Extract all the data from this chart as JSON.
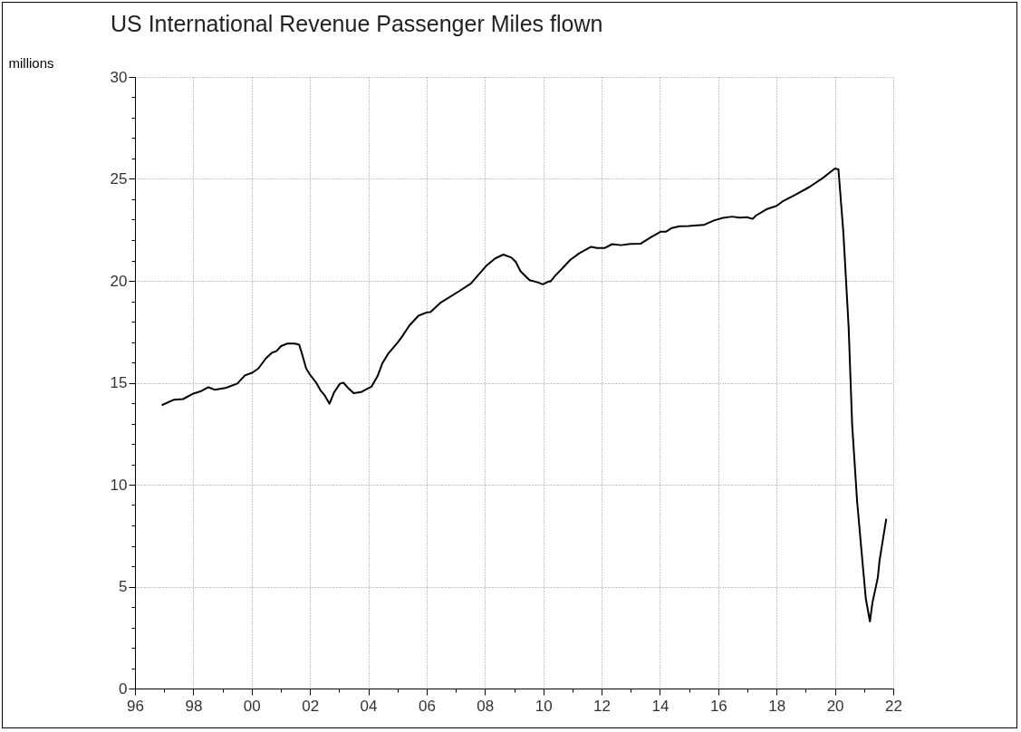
{
  "chart_data": {
    "type": "line",
    "title": "US International Revenue Passenger Miles flown",
    "ylabel": "millions",
    "grid": true,
    "xlim": [
      1996,
      2022
    ],
    "ylim": [
      0,
      30
    ],
    "xticks": [
      {
        "value": 1996,
        "label": "96"
      },
      {
        "value": 1997,
        "label": null
      },
      {
        "value": 1998,
        "label": "98"
      },
      {
        "value": 1999,
        "label": null
      },
      {
        "value": 2000,
        "label": "00"
      },
      {
        "value": 2001,
        "label": null
      },
      {
        "value": 2002,
        "label": "02"
      },
      {
        "value": 2003,
        "label": null
      },
      {
        "value": 2004,
        "label": "04"
      },
      {
        "value": 2005,
        "label": null
      },
      {
        "value": 2006,
        "label": "06"
      },
      {
        "value": 2007,
        "label": null
      },
      {
        "value": 2008,
        "label": "08"
      },
      {
        "value": 2009,
        "label": null
      },
      {
        "value": 2010,
        "label": "10"
      },
      {
        "value": 2011,
        "label": null
      },
      {
        "value": 2012,
        "label": "12"
      },
      {
        "value": 2013,
        "label": null
      },
      {
        "value": 2014,
        "label": "14"
      },
      {
        "value": 2015,
        "label": null
      },
      {
        "value": 2016,
        "label": "16"
      },
      {
        "value": 2017,
        "label": null
      },
      {
        "value": 2018,
        "label": "18"
      },
      {
        "value": 2019,
        "label": null
      },
      {
        "value": 2020,
        "label": "20"
      },
      {
        "value": 2021,
        "label": null
      },
      {
        "value": 2022,
        "label": "22"
      }
    ],
    "yticks": [
      0,
      {
        "value": 1,
        "label": null
      },
      {
        "value": 2,
        "label": null
      },
      {
        "value": 3,
        "label": null
      },
      {
        "value": 4,
        "label": null
      },
      5,
      {
        "value": 6,
        "label": null
      },
      {
        "value": 7,
        "label": null
      },
      {
        "value": 8,
        "label": null
      },
      {
        "value": 9,
        "label": null
      },
      10,
      {
        "value": 11,
        "label": null
      },
      {
        "value": 12,
        "label": null
      },
      {
        "value": 13,
        "label": null
      },
      {
        "value": 14,
        "label": null
      },
      15,
      {
        "value": 16,
        "label": null
      },
      {
        "value": 17,
        "label": null
      },
      {
        "value": 18,
        "label": null
      },
      {
        "value": 19,
        "label": null
      },
      20,
      {
        "value": 21,
        "label": null
      },
      {
        "value": 22,
        "label": null
      },
      {
        "value": 23,
        "label": null
      },
      {
        "value": 24,
        "label": null
      },
      25,
      {
        "value": 26,
        "label": null
      },
      {
        "value": 27,
        "label": null
      },
      {
        "value": 28,
        "label": null
      },
      {
        "value": 29,
        "label": null
      },
      30
    ],
    "series": [
      {
        "color": "#000000",
        "x": [
          1996.92,
          1997.34,
          1997.65,
          1998.0,
          1998.27,
          1998.52,
          1998.73,
          1999.1,
          1999.51,
          1999.77,
          2000.03,
          2000.23,
          2000.49,
          2000.7,
          2000.85,
          2001.01,
          2001.22,
          2001.48,
          2001.63,
          2001.74,
          2001.87,
          2002.0,
          2002.2,
          2002.36,
          2002.51,
          2002.67,
          2002.82,
          2003.03,
          2003.15,
          2003.29,
          2003.5,
          2003.75,
          2004.01,
          2004.11,
          2004.32,
          2004.48,
          2004.69,
          2005.0,
          2005.15,
          2005.41,
          2005.72,
          2006.0,
          2006.13,
          2006.49,
          2007.11,
          2007.52,
          2008.04,
          2008.35,
          2008.63,
          2008.91,
          2009.06,
          2009.22,
          2009.53,
          2009.78,
          2009.99,
          2010.2,
          2010.25,
          2010.4,
          2010.66,
          2010.92,
          2011.23,
          2011.64,
          2011.84,
          2012.1,
          2012.36,
          2012.67,
          2012.98,
          2013.33,
          2013.69,
          2014.02,
          2014.2,
          2014.41,
          2014.67,
          2014.98,
          2015.5,
          2015.85,
          2016.16,
          2016.47,
          2016.73,
          2016.98,
          2017.18,
          2017.29,
          2017.65,
          2018.0,
          2018.23,
          2018.65,
          2019.12,
          2019.59,
          2019.8,
          2020.0,
          2020.12,
          2020.29,
          2020.47,
          2020.59,
          2020.76,
          2020.94,
          2021.06,
          2021.2,
          2021.29,
          2021.47,
          2021.53,
          2021.76
        ],
        "values": [
          13.9,
          14.17,
          14.2,
          14.47,
          14.59,
          14.78,
          14.66,
          14.74,
          14.96,
          15.36,
          15.5,
          15.7,
          16.2,
          16.48,
          16.55,
          16.8,
          16.92,
          16.92,
          16.87,
          16.36,
          15.7,
          15.4,
          15.03,
          14.63,
          14.37,
          13.97,
          14.51,
          14.96,
          15.0,
          14.77,
          14.49,
          14.54,
          14.74,
          14.81,
          15.33,
          15.95,
          16.44,
          16.96,
          17.25,
          17.81,
          18.29,
          18.45,
          18.47,
          18.94,
          19.49,
          19.87,
          20.73,
          21.1,
          21.29,
          21.14,
          20.92,
          20.47,
          20.03,
          19.94,
          19.83,
          19.98,
          19.97,
          20.24,
          20.62,
          21.02,
          21.35,
          21.67,
          21.61,
          21.61,
          21.8,
          21.75,
          21.81,
          21.82,
          22.14,
          22.41,
          22.41,
          22.59,
          22.68,
          22.69,
          22.74,
          22.96,
          23.09,
          23.15,
          23.1,
          23.12,
          23.04,
          23.2,
          23.51,
          23.68,
          23.92,
          24.23,
          24.6,
          25.05,
          25.29,
          25.51,
          25.47,
          22.35,
          17.73,
          12.95,
          9.19,
          6.28,
          4.4,
          3.29,
          4.24,
          5.44,
          6.28,
          8.33
        ]
      }
    ]
  }
}
